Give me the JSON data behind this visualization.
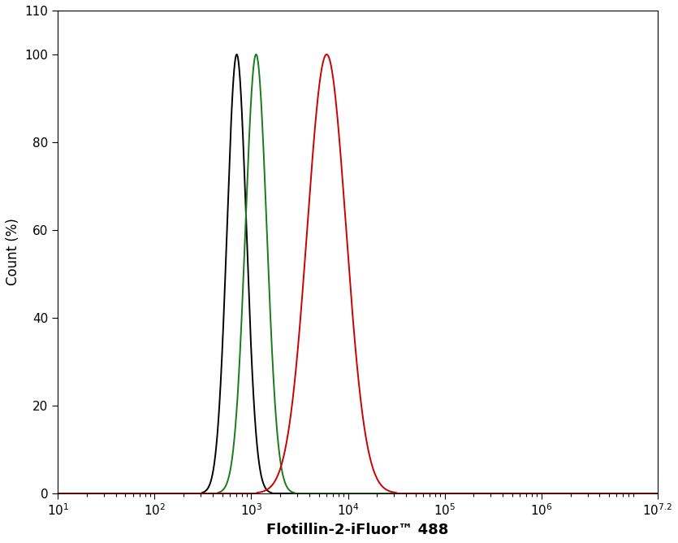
{
  "title": "",
  "xlabel": "Flotillin-2-iFluor™ 488",
  "ylabel": "Count (%)",
  "xlim_log": [
    1.0,
    7.2
  ],
  "ylim": [
    0,
    110
  ],
  "yticks": [
    0,
    20,
    40,
    60,
    80,
    100,
    110
  ],
  "xtick_positions": [
    1,
    2,
    3,
    4,
    5,
    6,
    7.2
  ],
  "black_peak_log": 2.85,
  "black_sigma_log": 0.1,
  "green_peak_log": 3.05,
  "green_sigma_log": 0.11,
  "red_peak_log": 3.78,
  "red_sigma_log": 0.2,
  "colors": {
    "black": "#000000",
    "green": "#1a7a1a",
    "red": "#cc0000"
  },
  "linewidth": 1.4,
  "background_color": "#ffffff",
  "xlabel_fontsize": 13,
  "xlabel_fontweight": "bold",
  "ylabel_fontsize": 12,
  "tick_fontsize": 11
}
